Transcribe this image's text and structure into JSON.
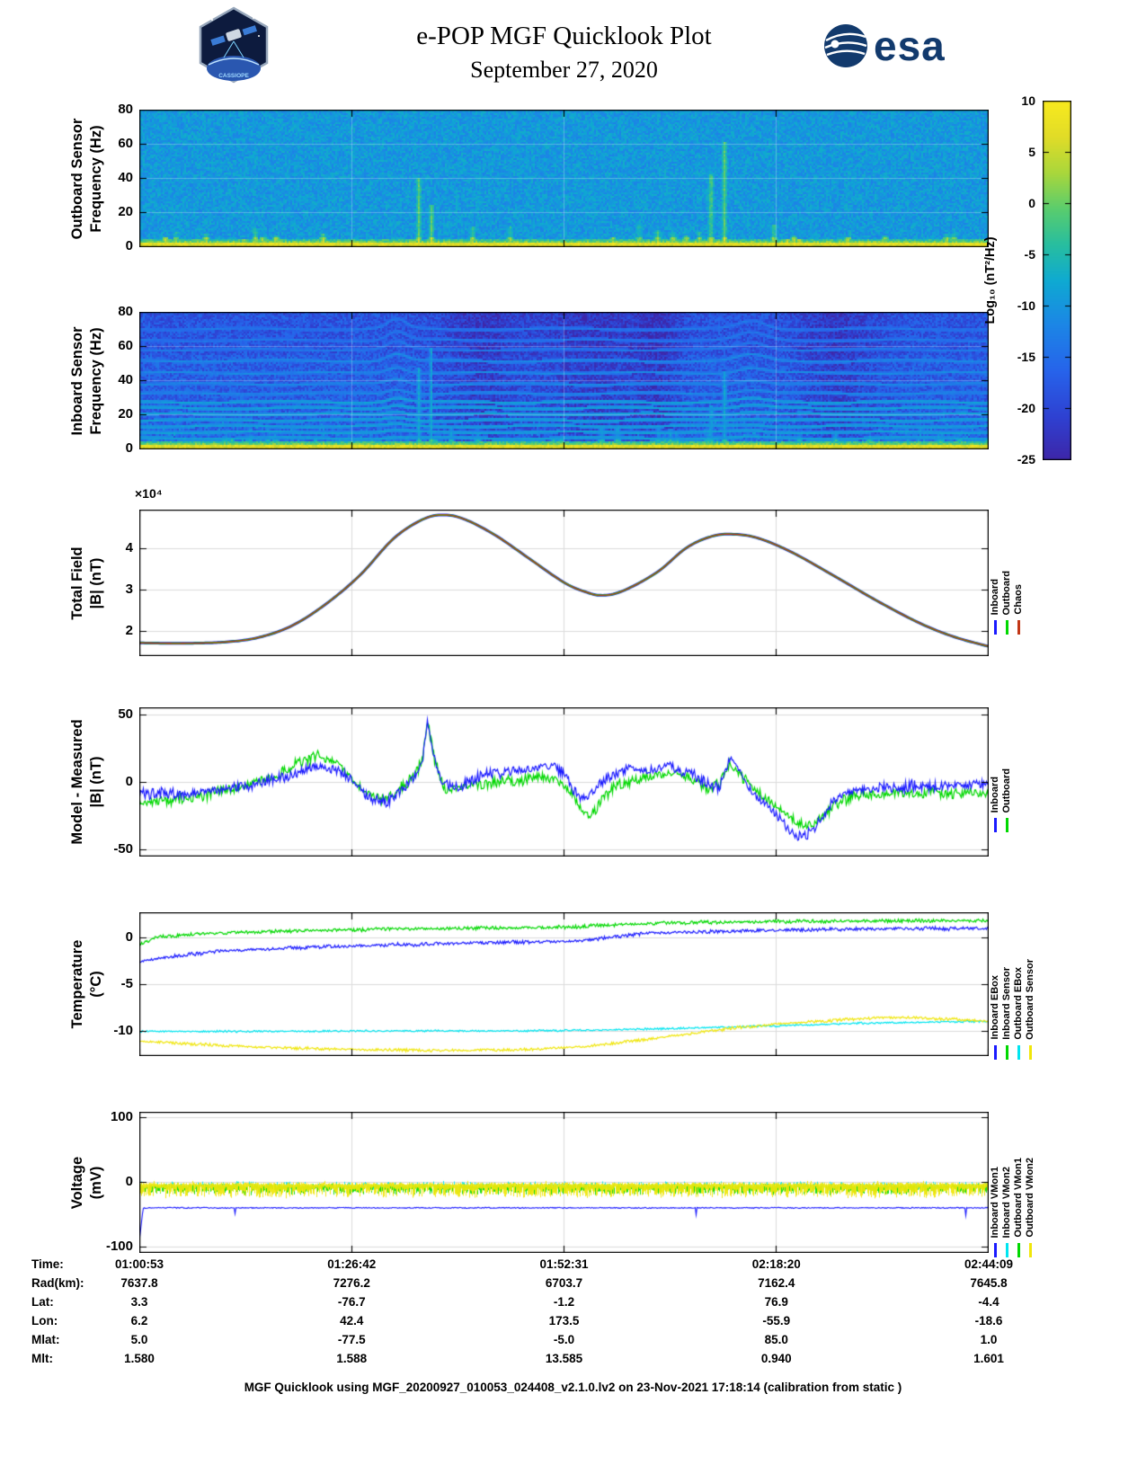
{
  "header": {
    "title": "e-POP MGF Quicklook Plot",
    "date": "September 27, 2020",
    "esa_label": "esa",
    "cassiope_label": "CASSIOPE"
  },
  "colorbar": {
    "label": "Log₁₀ (nT²/Hz)",
    "ticks": [
      10,
      5,
      0,
      -5,
      -10,
      -15,
      -20,
      -25
    ],
    "range": [
      -25,
      10
    ]
  },
  "panels": {
    "outboard_spec": {
      "ylabel_line1": "Outboard Sensor",
      "ylabel_line2": "Frequency (Hz)"
    },
    "inboard_spec": {
      "ylabel_line1": "Inboard Sensor",
      "ylabel_line2": "Frequency (Hz)"
    },
    "total_field": {
      "ylabel_line1": "Total Field",
      "ylabel_line2": "|B| (nT)",
      "exponent_label": "×10⁴"
    },
    "model_measured": {
      "ylabel_line1": "Model - Measured",
      "ylabel_line2": "|B| (nT)"
    },
    "temperature": {
      "ylabel_line1": "Temperature",
      "ylabel_line2": "(°C)"
    },
    "voltage": {
      "ylabel_line1": "Voltage",
      "ylabel_line2": "(mV)"
    }
  },
  "axis_table": {
    "rows": [
      {
        "label": "Time:",
        "values": [
          "01:00:53",
          "01:26:42",
          "01:52:31",
          "02:18:20",
          "02:44:09"
        ]
      },
      {
        "label": "Rad(km):",
        "values": [
          "7637.8",
          "7276.2",
          "6703.7",
          "7162.4",
          "7645.8"
        ]
      },
      {
        "label": "Lat:",
        "values": [
          "3.3",
          "-76.7",
          "-1.2",
          "76.9",
          "-4.4"
        ]
      },
      {
        "label": "Lon:",
        "values": [
          "6.2",
          "42.4",
          "173.5",
          "-55.9",
          "-18.6"
        ]
      },
      {
        "label": "Mlat:",
        "values": [
          "5.0",
          "-77.5",
          "-5.0",
          "85.0",
          "1.0"
        ]
      },
      {
        "label": "Mlt:",
        "values": [
          "1.580",
          "1.588",
          "13.585",
          "0.940",
          "1.601"
        ]
      }
    ]
  },
  "footer": "MGF Quicklook using MGF_20200927_010053_024408_v2.1.0.lv2 on 23-Nov-2021 17:18:14 (calibration from static )",
  "chart_data": [
    {
      "id": "outboard_spectrogram",
      "type": "heatmap",
      "ylabel": "Outboard Sensor Frequency (Hz)",
      "ylim": [
        0,
        80
      ],
      "yticks": [
        0,
        20,
        40,
        60,
        80
      ],
      "value_label": "Log10 (nT^2/Hz)",
      "value_range": [
        -25,
        10
      ],
      "base_level": -9.5,
      "noise": 3,
      "bottom_band_hz": 3,
      "bottom_level": 7,
      "events": [
        0.328,
        0.343,
        0.672,
        0.688
      ]
    },
    {
      "id": "inboard_spectrogram",
      "type": "heatmap",
      "ylabel": "Inboard Sensor Frequency (Hz)",
      "ylim": [
        0,
        80
      ],
      "yticks": [
        0,
        20,
        40,
        60,
        80
      ],
      "value_label": "Log10 (nT^2/Hz)",
      "value_range": [
        -25,
        10
      ],
      "base_level": -17,
      "noise": 3.5,
      "bottom_band_hz": 3,
      "bottom_level": 7,
      "interference_lines_hz": [
        3.5,
        7,
        10.5,
        14,
        17.5,
        21,
        24.5,
        28,
        33,
        38.5,
        45,
        52,
        58.5,
        64,
        70.5
      ],
      "line_level": -8,
      "dark_patches": [
        [
          0.4,
          0.035
        ],
        [
          0.53,
          0.045
        ],
        [
          0.61,
          0.02
        ],
        [
          0.82,
          0.035
        ]
      ],
      "events": [
        0.328,
        0.343,
        0.672,
        0.688
      ]
    },
    {
      "id": "total_field",
      "type": "line",
      "ylabel": "Total Field |B| (nT)",
      "unit_scale": "x10^4 nT",
      "xlim": [
        0,
        1
      ],
      "ylim": [
        1.4,
        4.95
      ],
      "yticks": [
        4,
        3,
        2
      ],
      "x": [
        0,
        0.05,
        0.1,
        0.14,
        0.18,
        0.22,
        0.26,
        0.3,
        0.335,
        0.36,
        0.385,
        0.42,
        0.46,
        0.5,
        0.525,
        0.545,
        0.57,
        0.61,
        0.645,
        0.675,
        0.7,
        0.73,
        0.77,
        0.82,
        0.87,
        0.92,
        0.96,
        1.0
      ],
      "y": [
        1.7,
        1.69,
        1.72,
        1.83,
        2.12,
        2.65,
        3.35,
        4.25,
        4.72,
        4.82,
        4.7,
        4.32,
        3.75,
        3.18,
        2.95,
        2.86,
        2.97,
        3.42,
        4.02,
        4.3,
        4.35,
        4.25,
        3.9,
        3.32,
        2.72,
        2.18,
        1.85,
        1.62
      ],
      "series": [
        {
          "name": "Inboard",
          "color": "#1a1aff"
        },
        {
          "name": "Outboard",
          "color": "#00d800"
        },
        {
          "name": "Chaos",
          "color": "#c23616"
        }
      ]
    },
    {
      "id": "model_minus_measured",
      "type": "line",
      "ylabel": "Model - Measured |B| (nT)",
      "xlim": [
        0,
        1
      ],
      "ylim": [
        -55,
        55
      ],
      "yticks": [
        50,
        0,
        -50
      ],
      "noise_amp": 3.2,
      "series": [
        {
          "name": "Inboard",
          "color": "#1a1aff",
          "points": [
            [
              0,
              -8
            ],
            [
              0.04,
              -9
            ],
            [
              0.08,
              -7
            ],
            [
              0.12,
              -4
            ],
            [
              0.16,
              1
            ],
            [
              0.19,
              8
            ],
            [
              0.215,
              12
            ],
            [
              0.24,
              6
            ],
            [
              0.26,
              -6
            ],
            [
              0.275,
              -14
            ],
            [
              0.29,
              -16
            ],
            [
              0.305,
              -8
            ],
            [
              0.32,
              0
            ],
            [
              0.333,
              14
            ],
            [
              0.339,
              44
            ],
            [
              0.347,
              18
            ],
            [
              0.357,
              -2
            ],
            [
              0.375,
              -4
            ],
            [
              0.4,
              4
            ],
            [
              0.43,
              7
            ],
            [
              0.46,
              9
            ],
            [
              0.485,
              12
            ],
            [
              0.5,
              6
            ],
            [
              0.512,
              -6
            ],
            [
              0.523,
              -13
            ],
            [
              0.535,
              -7
            ],
            [
              0.55,
              3
            ],
            [
              0.575,
              9
            ],
            [
              0.6,
              9
            ],
            [
              0.625,
              11
            ],
            [
              0.65,
              6
            ],
            [
              0.668,
              -2
            ],
            [
              0.683,
              -4
            ],
            [
              0.695,
              17
            ],
            [
              0.705,
              9
            ],
            [
              0.72,
              -6
            ],
            [
              0.745,
              -22
            ],
            [
              0.77,
              -38
            ],
            [
              0.782,
              -43
            ],
            [
              0.795,
              -34
            ],
            [
              0.815,
              -16
            ],
            [
              0.835,
              -8
            ],
            [
              0.86,
              -5
            ],
            [
              0.9,
              -4
            ],
            [
              0.95,
              -3
            ],
            [
              1,
              -2
            ]
          ]
        },
        {
          "name": "Outboard",
          "color": "#00d800",
          "points": [
            [
              0,
              -16
            ],
            [
              0.05,
              -13
            ],
            [
              0.1,
              -7
            ],
            [
              0.15,
              2
            ],
            [
              0.185,
              13
            ],
            [
              0.21,
              19
            ],
            [
              0.235,
              12
            ],
            [
              0.258,
              -4
            ],
            [
              0.275,
              -11
            ],
            [
              0.29,
              -13
            ],
            [
              0.31,
              -4
            ],
            [
              0.325,
              6
            ],
            [
              0.333,
              16
            ],
            [
              0.339,
              45
            ],
            [
              0.348,
              14
            ],
            [
              0.36,
              -6
            ],
            [
              0.38,
              -4
            ],
            [
              0.41,
              -1
            ],
            [
              0.44,
              1
            ],
            [
              0.47,
              3
            ],
            [
              0.49,
              2
            ],
            [
              0.508,
              -8
            ],
            [
              0.52,
              -20
            ],
            [
              0.53,
              -26
            ],
            [
              0.545,
              -14
            ],
            [
              0.56,
              -4
            ],
            [
              0.58,
              1
            ],
            [
              0.605,
              4
            ],
            [
              0.63,
              7
            ],
            [
              0.653,
              1
            ],
            [
              0.67,
              -5
            ],
            [
              0.684,
              -2
            ],
            [
              0.695,
              13
            ],
            [
              0.707,
              5
            ],
            [
              0.725,
              -6
            ],
            [
              0.75,
              -18
            ],
            [
              0.775,
              -30
            ],
            [
              0.79,
              -33
            ],
            [
              0.805,
              -26
            ],
            [
              0.825,
              -14
            ],
            [
              0.85,
              -10
            ],
            [
              0.89,
              -9
            ],
            [
              0.94,
              -8
            ],
            [
              1,
              -9
            ]
          ]
        }
      ]
    },
    {
      "id": "temperature",
      "type": "line",
      "ylabel": "Temperature (°C)",
      "xlim": [
        0,
        1
      ],
      "ylim": [
        -12.6,
        2.7
      ],
      "yticks": [
        0,
        -5,
        -10
      ],
      "series": [
        {
          "name": "Inboard EBox",
          "color": "#1a1aff",
          "noise": 0.15,
          "points": [
            [
              0,
              -2.6
            ],
            [
              0.04,
              -2.0
            ],
            [
              0.08,
              -1.6
            ],
            [
              0.13,
              -1.3
            ],
            [
              0.2,
              -1.05
            ],
            [
              0.28,
              -0.85
            ],
            [
              0.36,
              -0.65
            ],
            [
              0.44,
              -0.5
            ],
            [
              0.52,
              -0.4
            ],
            [
              0.56,
              0.1
            ],
            [
              0.6,
              0.45
            ],
            [
              0.68,
              0.65
            ],
            [
              0.76,
              0.8
            ],
            [
              0.85,
              0.9
            ],
            [
              0.93,
              0.95
            ],
            [
              1,
              1.0
            ]
          ]
        },
        {
          "name": "Inboard Sensor",
          "color": "#00d800",
          "noise": 0.15,
          "points": [
            [
              0,
              -0.7
            ],
            [
              0.02,
              0.0
            ],
            [
              0.06,
              0.35
            ],
            [
              0.12,
              0.55
            ],
            [
              0.2,
              0.75
            ],
            [
              0.3,
              0.9
            ],
            [
              0.4,
              1.0
            ],
            [
              0.5,
              1.1
            ],
            [
              0.56,
              1.35
            ],
            [
              0.62,
              1.55
            ],
            [
              0.7,
              1.65
            ],
            [
              0.8,
              1.75
            ],
            [
              0.9,
              1.8
            ],
            [
              1,
              1.8
            ]
          ]
        },
        {
          "name": "Outboard EBox",
          "color": "#00e5f0",
          "noise": 0.08,
          "points": [
            [
              0,
              -10.05
            ],
            [
              0.15,
              -10.05
            ],
            [
              0.3,
              -10.0
            ],
            [
              0.45,
              -10.0
            ],
            [
              0.55,
              -9.9
            ],
            [
              0.65,
              -9.7
            ],
            [
              0.75,
              -9.45
            ],
            [
              0.85,
              -9.2
            ],
            [
              0.93,
              -9.05
            ],
            [
              1,
              -9.0
            ]
          ]
        },
        {
          "name": "Outboard Sensor",
          "color": "#f0e60a",
          "noise": 0.12,
          "points": [
            [
              0,
              -11.1
            ],
            [
              0.08,
              -11.5
            ],
            [
              0.16,
              -11.8
            ],
            [
              0.26,
              -12.0
            ],
            [
              0.36,
              -12.1
            ],
            [
              0.46,
              -12.0
            ],
            [
              0.52,
              -11.7
            ],
            [
              0.58,
              -11.1
            ],
            [
              0.64,
              -10.4
            ],
            [
              0.7,
              -9.7
            ],
            [
              0.76,
              -9.2
            ],
            [
              0.82,
              -8.85
            ],
            [
              0.87,
              -8.6
            ],
            [
              0.9,
              -8.55
            ],
            [
              0.94,
              -8.7
            ],
            [
              1,
              -8.95
            ]
          ]
        }
      ]
    },
    {
      "id": "voltage",
      "type": "line",
      "ylabel": "Voltage (mV)",
      "xlim": [
        0,
        1
      ],
      "ylim": [
        -108,
        108
      ],
      "yticks": [
        100,
        0,
        -100
      ],
      "series": [
        {
          "name": "Inboard VMon1",
          "color": "#1a1aff",
          "style": "line_with_spikes",
          "baseline": -40,
          "start_spike": -85
        },
        {
          "name": "Inboard VMon2",
          "color": "#00e5f0",
          "style": "noise_band",
          "band": [
            -8,
            1
          ]
        },
        {
          "name": "Outboard VMon1",
          "color": "#00d800",
          "style": "noise_band",
          "band": [
            -17,
            -3
          ]
        },
        {
          "name": "Outboard VMon2",
          "color": "#f0e60a",
          "style": "noise_band",
          "band": [
            -24,
            -1
          ]
        }
      ]
    }
  ]
}
